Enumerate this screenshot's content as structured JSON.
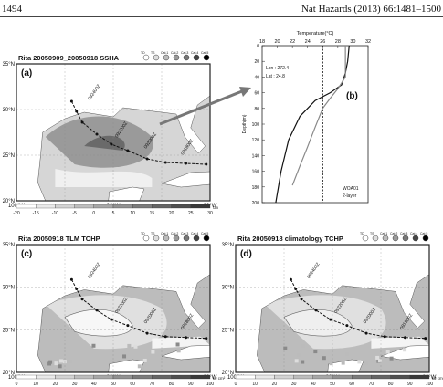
{
  "running_head": {
    "page_number": "1494",
    "citation": "Nat Hazards (2013) 66:1481–1500"
  },
  "panels": {
    "a": {
      "title": "Rita 20050909_20050918 SSHA",
      "label": "(a)",
      "colorbar_ticks": [
        "-20",
        "-15",
        "-10",
        "-5",
        "0",
        "5",
        "10",
        "15",
        "20",
        "25",
        "30"
      ],
      "colorbar_unit": "cm"
    },
    "b": {
      "label": "(b)",
      "x_title": "Temperature(°C)",
      "x_ticks": [
        "18",
        "20",
        "22",
        "24",
        "26",
        "28",
        "30",
        "32"
      ],
      "y_title": "Depth(m)",
      "y_ticks": [
        "0",
        "20",
        "40",
        "60",
        "80",
        "100",
        "120",
        "140",
        "160",
        "180",
        "200"
      ],
      "lon": "Lon : 272.4",
      "lat": "Lat : 24.8",
      "legend": [
        "WOA01",
        "2-layer"
      ]
    },
    "c": {
      "title": "Rita 20050918 TLM TCHP",
      "label": "(c)"
    },
    "d": {
      "title": "Rita 20050918 climatology TCHP",
      "label": "(d)"
    }
  },
  "map_axes": {
    "lat_ticks": [
      "35°N",
      "30°N",
      "25°N",
      "20°N"
    ],
    "lon_ticks": [
      "100°W",
      "90°W",
      "80°W"
    ]
  },
  "tchp_colorbar": {
    "ticks": [
      "0",
      "10",
      "20",
      "30",
      "40",
      "50",
      "60",
      "70",
      "80",
      "90",
      "100"
    ],
    "unit": "kJ cm²"
  },
  "track_labels": [
    "092400Z",
    "092200Z",
    "092000Z",
    "091800Z"
  ],
  "track_legend": [
    "TD",
    "TS",
    "Cat.1",
    "Cat.2",
    "Cat.3",
    "Cat.4",
    "Cat.5"
  ],
  "chart_data": {
    "type": "line",
    "xlabel": "Temperature(°C)",
    "ylabel": "Depth(m)",
    "xlim": [
      18,
      32
    ],
    "ylim": [
      200,
      0
    ],
    "reference_line_x": 26,
    "series": [
      {
        "name": "WOA01",
        "x": [
          29.5,
          29.3,
          29.0,
          28.5,
          27.0,
          25.0,
          23.0,
          21.5,
          20.5,
          19.8
        ],
        "y": [
          0,
          20,
          35,
          50,
          60,
          70,
          90,
          120,
          160,
          200
        ]
      },
      {
        "name": "2-layer",
        "x": [
          29.0,
          29.0,
          29.0,
          28.0,
          27.0,
          26.0,
          25.0,
          24.0,
          23.0,
          22.0
        ],
        "y": [
          0,
          20,
          40,
          55,
          67,
          80,
          104,
          129,
          153,
          178
        ]
      }
    ]
  }
}
